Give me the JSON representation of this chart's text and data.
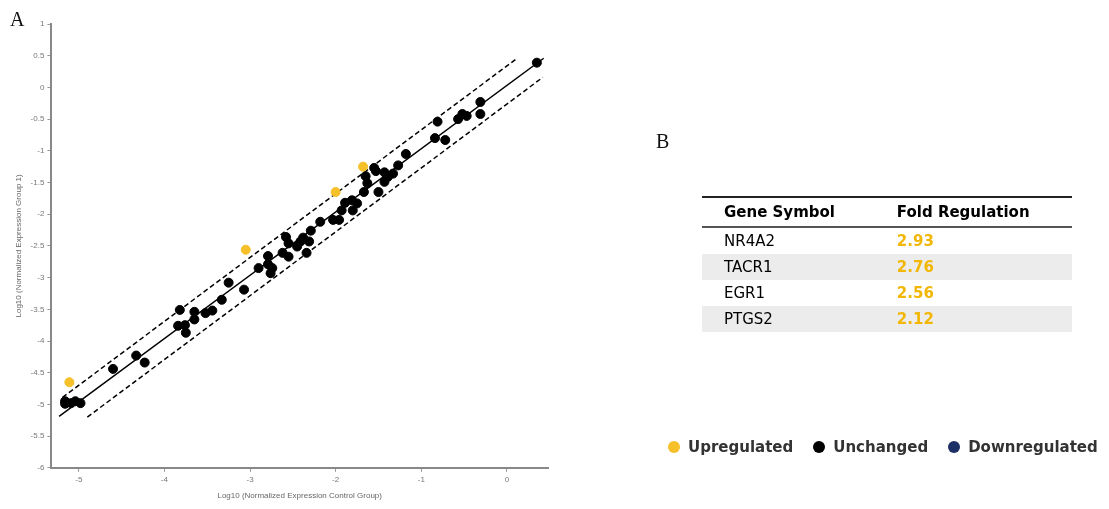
{
  "chart_data": [
    {
      "type": "scatter",
      "title": "A",
      "xlabel": "Log10 (Normalized Expression Control Group)",
      "ylabel": "Log10 (Normalized Expression Group 1)",
      "xlim": [
        -5.32,
        0.48
      ],
      "xticks": [
        -5,
        -4,
        -3,
        -2,
        -1,
        0
      ],
      "ylim": [
        -6,
        1
      ],
      "yticks": [
        1,
        0.5,
        0,
        -0.5,
        -1,
        -1.5,
        -2,
        -2.5,
        -3,
        -3.5,
        -4,
        -4.5,
        -5,
        -5.5,
        -6
      ],
      "grid": false,
      "legend": "bottom right",
      "marker": "circle",
      "series": [
        {
          "name": "Upregulated",
          "color": "#f5c02a",
          "x": [
            -5.11,
            -3.05,
            -2.0,
            -1.68
          ],
          "values": [
            -4.65,
            -2.56,
            -1.65,
            -1.25
          ]
        },
        {
          "name": "Unchanged",
          "color": "#000000",
          "x": [
            -5.16,
            -5.16,
            -5.09,
            -5.04,
            -4.98,
            -4.6,
            -4.33,
            -4.23,
            -3.82,
            -3.84,
            -3.76,
            -3.75,
            -3.65,
            -3.65,
            -3.52,
            -3.44,
            -3.33,
            -3.25,
            -3.07,
            -2.9,
            -2.79,
            -2.79,
            -2.74,
            -2.76,
            -2.62,
            -2.55,
            -2.55,
            -2.58,
            -2.45,
            -2.41,
            -2.38,
            -2.31,
            -2.34,
            -2.29,
            -2.18,
            -2.03,
            -1.96,
            -1.93,
            -1.89,
            -1.8,
            -1.81,
            -1.75,
            -1.67,
            -1.5,
            -1.65,
            -1.55,
            -1.53,
            -1.63,
            -1.43,
            -1.43,
            -1.39,
            -1.33,
            -1.27,
            -1.18,
            -0.81,
            -0.84,
            -0.72,
            -0.57,
            -0.52,
            -0.47,
            -0.31,
            -0.31,
            0.35
          ],
          "values": [
            -4.95,
            -4.99,
            -4.98,
            -4.95,
            -4.98,
            -4.44,
            -4.23,
            -4.34,
            -3.51,
            -3.76,
            -3.75,
            -3.87,
            -3.54,
            -3.66,
            -3.56,
            -3.52,
            -3.35,
            -3.08,
            -3.19,
            -2.85,
            -2.66,
            -2.79,
            -2.85,
            -2.93,
            -2.61,
            -2.67,
            -2.46,
            -2.36,
            -2.51,
            -2.43,
            -2.37,
            -2.43,
            -2.61,
            -2.26,
            -2.12,
            -2.09,
            -2.09,
            -1.94,
            -1.82,
            -1.94,
            -1.78,
            -1.83,
            -1.65,
            -1.65,
            -1.4,
            -1.27,
            -1.32,
            -1.51,
            -1.34,
            -1.49,
            -1.41,
            -1.36,
            -1.23,
            -1.05,
            -0.54,
            -0.8,
            -0.83,
            -0.5,
            -0.42,
            -0.45,
            -0.23,
            -0.42,
            0.39
          ]
        },
        {
          "name": "Downregulated",
          "color": "#1c2f66"
        },
        {
          "type": "line",
          "color": "#000000",
          "line_style": "solid",
          "marker": "none",
          "x": [
            -5.23,
            0.43
          ],
          "values": [
            -5.19,
            0.46
          ]
        },
        {
          "type": "line",
          "color": "#000000",
          "line_style": "dashed",
          "marker": "none",
          "x": [
            -5.19,
            0.12
          ],
          "values": [
            -4.89,
            0.46
          ]
        },
        {
          "type": "line",
          "color": "#000000",
          "line_style": "dashed",
          "marker": "none",
          "x": [
            -4.9,
            0.42
          ],
          "values": [
            -5.2,
            0.16
          ]
        }
      ]
    },
    {
      "type": "other",
      "title": "B",
      "xlabel": "Gene Symbol",
      "ylabel": "Fold Regulation",
      "categories": [
        "NR4A2",
        "TACR1",
        "EGR1",
        "PTGS2"
      ],
      "values": [
        2.93,
        2.76,
        2.56,
        2.12
      ],
      "data_labels": true
    }
  ]
}
